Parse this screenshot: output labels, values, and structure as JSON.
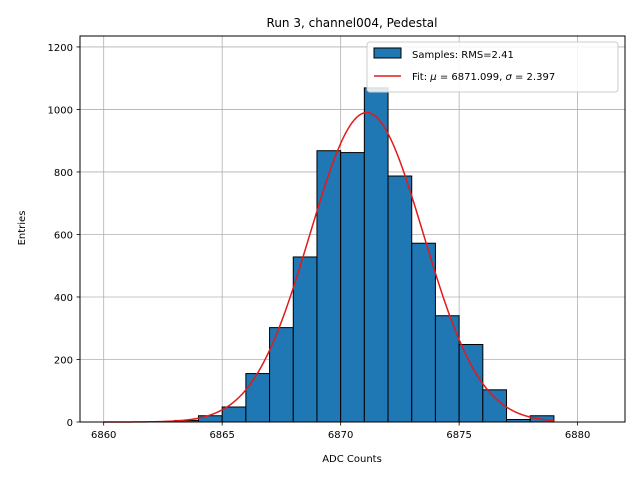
{
  "chart_data": {
    "type": "bar",
    "title": "Run 3, channel004, Pedestal",
    "xlabel": "ADC Counts",
    "ylabel": "Entries",
    "xlim": [
      6859,
      6882
    ],
    "ylim": [
      0,
      1235
    ],
    "xticks": [
      6860,
      6865,
      6870,
      6875,
      6880
    ],
    "yticks": [
      0,
      200,
      400,
      600,
      800,
      1000,
      1200
    ],
    "grid": true,
    "legend_position": "top-right",
    "histogram": {
      "name": "Samples: RMS=2.41",
      "color": "#1f77b4",
      "edge_color": "#000000",
      "bin_edges": [
        6863,
        6864,
        6865,
        6866,
        6867,
        6868,
        6869,
        6870,
        6871,
        6872,
        6873,
        6874,
        6875,
        6876,
        6877,
        6878,
        6879
      ],
      "counts": [
        5,
        20,
        48,
        155,
        302,
        528,
        868,
        862,
        1069,
        787,
        572,
        340,
        248,
        103,
        8,
        20
      ]
    },
    "fit": {
      "label_prefix": "Fit: ",
      "label_mu_symbol": "μ",
      "label_mu_value": " = 6871.099, ",
      "label_sigma_symbol": "σ",
      "label_sigma_value": " = 2.397",
      "color": "#e31a1c",
      "mu": 6871.099,
      "sigma": 2.397,
      "amplitude": 990,
      "x_range": [
        6860,
        6879
      ]
    }
  }
}
